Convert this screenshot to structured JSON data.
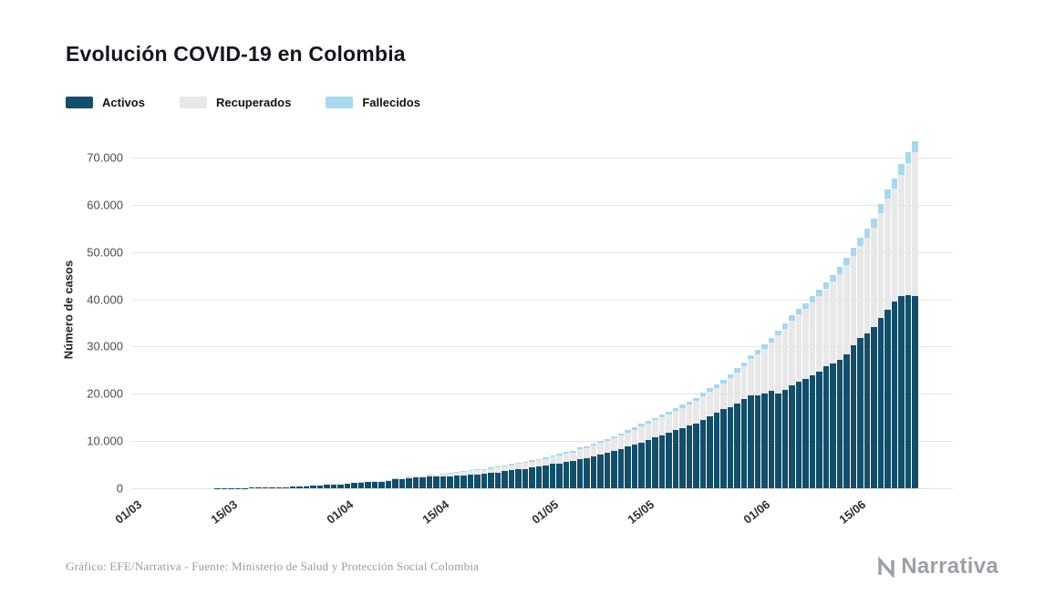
{
  "title": "Evolución COVID-19 en Colombia",
  "footer": {
    "source": "Gráfico: EFE/Narrativa - Fuente: Ministerio de Salud y Protección Social Colombia",
    "brand": "Narrativa"
  },
  "chart_data": {
    "type": "bar",
    "stacked": true,
    "title": "Evolución COVID-19 en Colombia",
    "ylabel": "Número de casos",
    "ylim": [
      0,
      74000
    ],
    "grid": true,
    "legend_position": "top-left",
    "yticks": [
      0,
      10000,
      20000,
      30000,
      40000,
      50000,
      60000,
      70000
    ],
    "ytick_labels": [
      "0",
      "10.000",
      "20.000",
      "30.000",
      "40.000",
      "50.000",
      "60.000",
      "70.000"
    ],
    "xticks": [
      {
        "label": "01/03",
        "index": 0
      },
      {
        "label": "15/03",
        "index": 14
      },
      {
        "label": "01/04",
        "index": 31
      },
      {
        "label": "15/04",
        "index": 45
      },
      {
        "label": "01/05",
        "index": 61
      },
      {
        "label": "15/05",
        "index": 75
      },
      {
        "label": "01/06",
        "index": 92
      },
      {
        "label": "15/06",
        "index": 106
      }
    ],
    "x": [
      "01/03",
      "02/03",
      "03/03",
      "04/03",
      "05/03",
      "06/03",
      "07/03",
      "08/03",
      "09/03",
      "10/03",
      "11/03",
      "12/03",
      "13/03",
      "14/03",
      "15/03",
      "16/03",
      "17/03",
      "18/03",
      "19/03",
      "20/03",
      "21/03",
      "22/03",
      "23/03",
      "24/03",
      "25/03",
      "26/03",
      "27/03",
      "28/03",
      "29/03",
      "30/03",
      "31/03",
      "01/04",
      "02/04",
      "03/04",
      "04/04",
      "05/04",
      "06/04",
      "07/04",
      "08/04",
      "09/04",
      "10/04",
      "11/04",
      "12/04",
      "13/04",
      "14/04",
      "15/04",
      "16/04",
      "17/04",
      "18/04",
      "19/04",
      "20/04",
      "21/04",
      "22/04",
      "23/04",
      "24/04",
      "25/04",
      "26/04",
      "27/04",
      "28/04",
      "29/04",
      "30/04",
      "01/05",
      "02/05",
      "03/05",
      "04/05",
      "05/05",
      "06/05",
      "07/05",
      "08/05",
      "09/05",
      "10/05",
      "11/05",
      "12/05",
      "13/05",
      "14/05",
      "15/05",
      "16/05",
      "17/05",
      "18/05",
      "19/05",
      "20/05",
      "21/05",
      "22/05",
      "23/05",
      "24/05",
      "25/05",
      "26/05",
      "27/05",
      "28/05",
      "29/05",
      "30/05",
      "31/05",
      "01/06",
      "02/06",
      "03/06",
      "04/06",
      "05/06",
      "06/06",
      "07/06",
      "08/06",
      "09/06",
      "10/06",
      "11/06",
      "12/06",
      "13/06",
      "14/06",
      "15/06",
      "16/06",
      "17/06",
      "18/06",
      "19/06",
      "20/06",
      "21/06",
      "22/06",
      "23/06"
    ],
    "series": [
      {
        "name": "Activos",
        "color": "#134e6b",
        "values": [
          0,
          0,
          0,
          0,
          0,
          1,
          1,
          1,
          3,
          3,
          9,
          9,
          16,
          22,
          33,
          53,
          74,
          101,
          127,
          144,
          193,
          226,
          271,
          369,
          458,
          477,
          523,
          592,
          682,
          771,
          859,
          1009,
          1087,
          1187,
          1289,
          1362,
          1433,
          1602,
          1865,
          1980,
          2196,
          2395,
          2397,
          2421,
          2498,
          2522,
          2539,
          2652,
          2744,
          2878,
          2984,
          3088,
          3223,
          3344,
          3626,
          3842,
          4002,
          4134,
          4412,
          4584,
          4775,
          5141,
          5295,
          5606,
          5808,
          6222,
          6414,
          6749,
          7199,
          7481,
          7895,
          8309,
          8808,
          9288,
          9727,
          10210,
          10790,
          11249,
          11800,
          12272,
          12801,
          13247,
          13731,
          14504,
          15322,
          15966,
          16716,
          17190,
          17879,
          18922,
          19714,
          19688,
          20067,
          20725,
          20021,
          20779,
          21852,
          22605,
          23105,
          23984,
          24680,
          25822,
          26498,
          27244,
          28439,
          30259,
          31911,
          32764,
          34082,
          36023,
          37867,
          39519,
          40615,
          40973,
          40768
        ]
      },
      {
        "name": "Recuperados",
        "color": "#e8e8e8",
        "values": [
          0,
          0,
          0,
          0,
          0,
          0,
          0,
          0,
          0,
          0,
          0,
          0,
          0,
          0,
          1,
          1,
          1,
          1,
          1,
          1,
          2,
          3,
          3,
          6,
          8,
          8,
          10,
          10,
          10,
          15,
          31,
          39,
          55,
          55,
          85,
          88,
          100,
          128,
          135,
          174,
          197,
          214,
          270,
          319,
          354,
          452,
          550,
          634,
          711,
          735,
          804,
          865,
          927,
          1002,
          1030,
          1067,
          1133,
          1210,
          1268,
          1345,
          1439,
          1551,
          1666,
          1722,
          1807,
          2013,
          2148,
          2300,
          2424,
          2569,
          2705,
          2825,
          2971,
          3133,
          3358,
          3460,
          3587,
          3751,
          3903,
          4050,
          4256,
          4431,
          4718,
          4968,
          5126,
          5265,
          5511,
          6111,
          6665,
          6913,
          7632,
          8756,
          9457,
          10099,
          12288,
          12971,
          13638,
          14217,
          14872,
          15427,
          16026,
          16427,
          17226,
          18069,
          18715,
          19013,
          19426,
          20366,
          21100,
          22244,
          23364,
          23988,
          25800,
          27900,
          30400
        ]
      },
      {
        "name": "Fallecidos",
        "color": "#a7d8ee",
        "values": [
          0,
          0,
          0,
          0,
          0,
          0,
          0,
          0,
          0,
          0,
          0,
          0,
          0,
          0,
          0,
          0,
          0,
          0,
          0,
          0,
          1,
          2,
          3,
          3,
          4,
          6,
          6,
          6,
          10,
          12,
          16,
          17,
          19,
          25,
          32,
          35,
          46,
          50,
          54,
          69,
          80,
          100,
          109,
          112,
          127,
          131,
          144,
          153,
          166,
          179,
          189,
          196,
          206,
          215,
          225,
          233,
          244,
          253,
          269,
          278,
          293,
          314,
          324,
          340,
          358,
          378,
          397,
          407,
          428,
          445,
          463,
          479,
          493,
          509,
          525,
          546,
          562,
          574,
          592,
          613,
          630,
          652,
          682,
          705,
          727,
          750,
          776,
          803,
          822,
          853,
          890,
          939,
          969,
          1009,
          1045,
          1084,
          1145,
          1205,
          1259,
          1308,
          1372,
          1433,
          1488,
          1545,
          1592,
          1667,
          1726,
          1801,
          1864,
          1950,
          2045,
          2126,
          2237,
          2310,
          2404
        ]
      }
    ]
  }
}
